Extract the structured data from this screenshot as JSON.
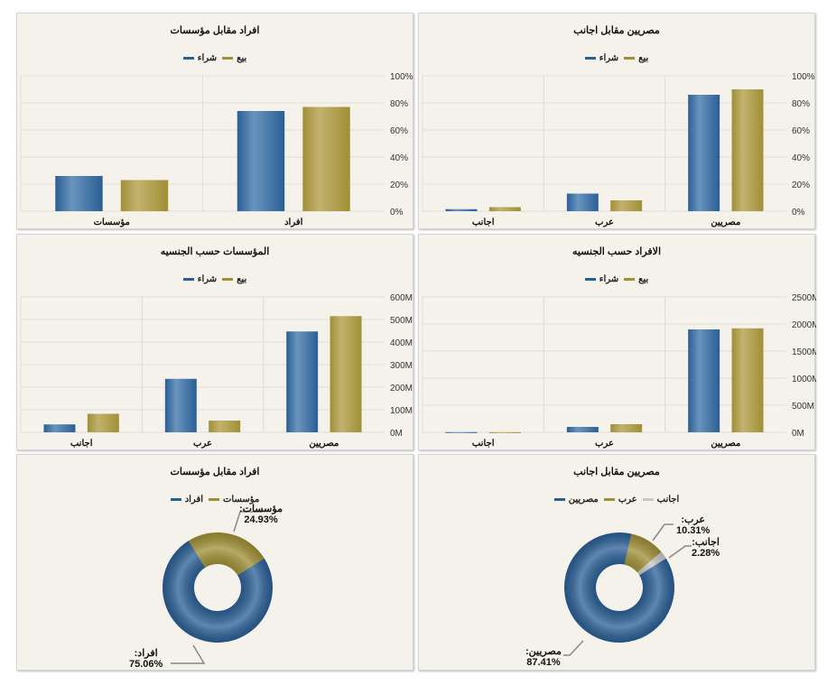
{
  "colors": {
    "buy": "#2a5f96",
    "sell": "#a08f35",
    "foreign": "#c8c8c8"
  },
  "chart_data": [
    {
      "id": "c1",
      "type": "bar",
      "title": "افراد مقابل مؤسسات",
      "legend": [
        "بيع",
        "شراء"
      ],
      "categories": [
        "مؤسسات",
        "افراد"
      ],
      "series": [
        {
          "name": "شراء",
          "values": [
            26,
            74
          ]
        },
        {
          "name": "بيع",
          "values": [
            23,
            77
          ]
        }
      ],
      "ylim": [
        0,
        100
      ],
      "yticks": [
        "0%",
        "20%",
        "40%",
        "60%",
        "80%",
        "100%"
      ]
    },
    {
      "id": "c2",
      "type": "bar",
      "title": "مصريين مقابل اجانب",
      "legend": [
        "بيع",
        "شراء"
      ],
      "categories": [
        "اجانب",
        "عرب",
        "مصريين"
      ],
      "series": [
        {
          "name": "شراء",
          "values": [
            1.5,
            13,
            86
          ]
        },
        {
          "name": "بيع",
          "values": [
            3,
            8,
            90
          ]
        }
      ],
      "ylim": [
        0,
        100
      ],
      "yticks": [
        "0%",
        "20%",
        "40%",
        "60%",
        "80%",
        "100%"
      ]
    },
    {
      "id": "c3",
      "type": "bar",
      "title": "المؤسسات حسب الجنسيه",
      "legend": [
        "بيع",
        "شراء"
      ],
      "categories": [
        "اجانب",
        "عرب",
        "مصريين"
      ],
      "series": [
        {
          "name": "شراء",
          "values": [
            35,
            237,
            447
          ]
        },
        {
          "name": "بيع",
          "values": [
            82,
            52,
            515
          ]
        }
      ],
      "ylim": [
        0,
        600
      ],
      "yticks": [
        "0M",
        "100M",
        "200M",
        "300M",
        "400M",
        "500M",
        "600M"
      ]
    },
    {
      "id": "c4",
      "type": "bar",
      "title": "الافراد حسب الجنسيه",
      "legend": [
        "بيع",
        "شراء"
      ],
      "categories": [
        "اجانب",
        "عرب",
        "مصريين"
      ],
      "series": [
        {
          "name": "شراء",
          "values": [
            3,
            100,
            1900
          ]
        },
        {
          "name": "بيع",
          "values": [
            2,
            150,
            1920
          ]
        }
      ],
      "ylim": [
        0,
        2500
      ],
      "yticks": [
        "0M",
        "500M",
        "1000M",
        "1500M",
        "2000M",
        "2500M"
      ]
    },
    {
      "id": "c5",
      "type": "pie",
      "title": "افراد مقابل مؤسسات",
      "slices": [
        {
          "name": "افراد",
          "value": 75.06,
          "label": "افراد:",
          "pct": "75.06%"
        },
        {
          "name": "مؤسسات",
          "value": 24.93,
          "label": "مؤسسات:",
          "pct": "24.93%"
        }
      ]
    },
    {
      "id": "c6",
      "type": "pie",
      "title": "مصريين مقابل اجانب",
      "slices": [
        {
          "name": "مصريين",
          "value": 87.41,
          "label": "مصريين:",
          "pct": "87.41%"
        },
        {
          "name": "عرب",
          "value": 10.31,
          "label": "عرب:",
          "pct": "10.31%"
        },
        {
          "name": "اجانب",
          "value": 2.28,
          "label": "اجانب:",
          "pct": "2.28%"
        }
      ]
    }
  ]
}
